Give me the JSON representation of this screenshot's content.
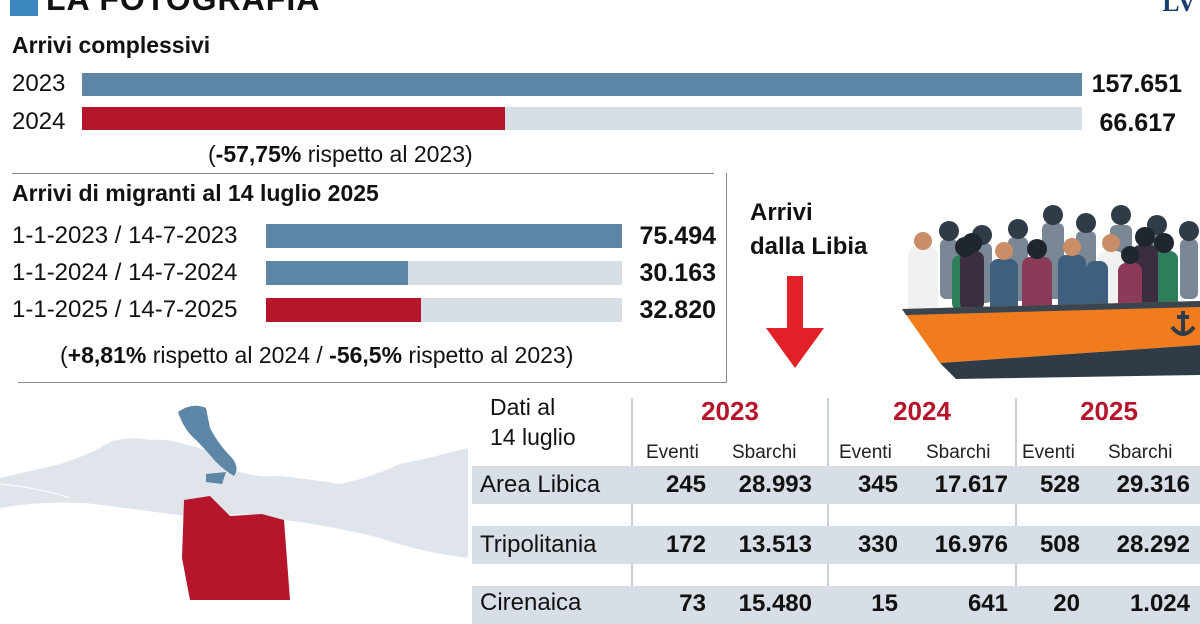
{
  "header": {
    "title": "LA FOTOGRAFIA",
    "logo": "LV"
  },
  "colors": {
    "series_2023": "#5e86a6",
    "series_2024": "#b5162b",
    "track": "#d8dee6",
    "accent_blue": "#3c86c0",
    "arrow_red": "#e12027",
    "map_land": "#e6ebf0",
    "italy": "#5e86a6",
    "libya": "#b5162b"
  },
  "chart_data": [
    {
      "type": "bar",
      "title": "Arrivi complessivi",
      "categories": [
        "2023",
        "2024"
      ],
      "values": [
        157651,
        66617
      ],
      "value_labels": [
        "157.651",
        "66.617"
      ],
      "xlim": [
        0,
        157651
      ],
      "note": {
        "open": "(",
        "bold": "-57,75%",
        "text": " rispetto al 2023)"
      }
    },
    {
      "type": "bar",
      "title": "Arrivi di migranti al 14 luglio 2025",
      "categories": [
        "1-1-2023 / 14-7-2023",
        "1-1-2024 / 14-7-2024",
        "1-1-2025 / 14-7-2025"
      ],
      "values": [
        75494,
        30163,
        32820
      ],
      "value_labels": [
        "75.494",
        "30.163",
        "32.820"
      ],
      "xlim": [
        0,
        75494
      ],
      "note": {
        "p1": "(",
        "b1": "+8,81%",
        "p2": " rispetto al 2024 / ",
        "b2": "-56,5%",
        "p3": " rispetto al 2023)"
      }
    },
    {
      "type": "table",
      "title": "Dati al 14 luglio",
      "title_lines": [
        "Dati al",
        "14 luglio"
      ],
      "years": [
        "2023",
        "2024",
        "2025"
      ],
      "subheaders": [
        "Eventi",
        "Sbarchi"
      ],
      "rows": [
        {
          "label": "Area Libica",
          "values": [
            "245",
            "28.993",
            "345",
            "17.617",
            "528",
            "29.316"
          ]
        },
        {
          "label": "Tripolitania",
          "values": [
            "172",
            "13.513",
            "330",
            "16.976",
            "508",
            "28.292"
          ]
        },
        {
          "label": "Cirenaica",
          "values": [
            "73",
            "15.480",
            "15",
            "641",
            "20",
            "1.024"
          ]
        }
      ]
    }
  ],
  "libya_callout": {
    "lines": [
      "Arrivi",
      "dalla Libia"
    ]
  }
}
